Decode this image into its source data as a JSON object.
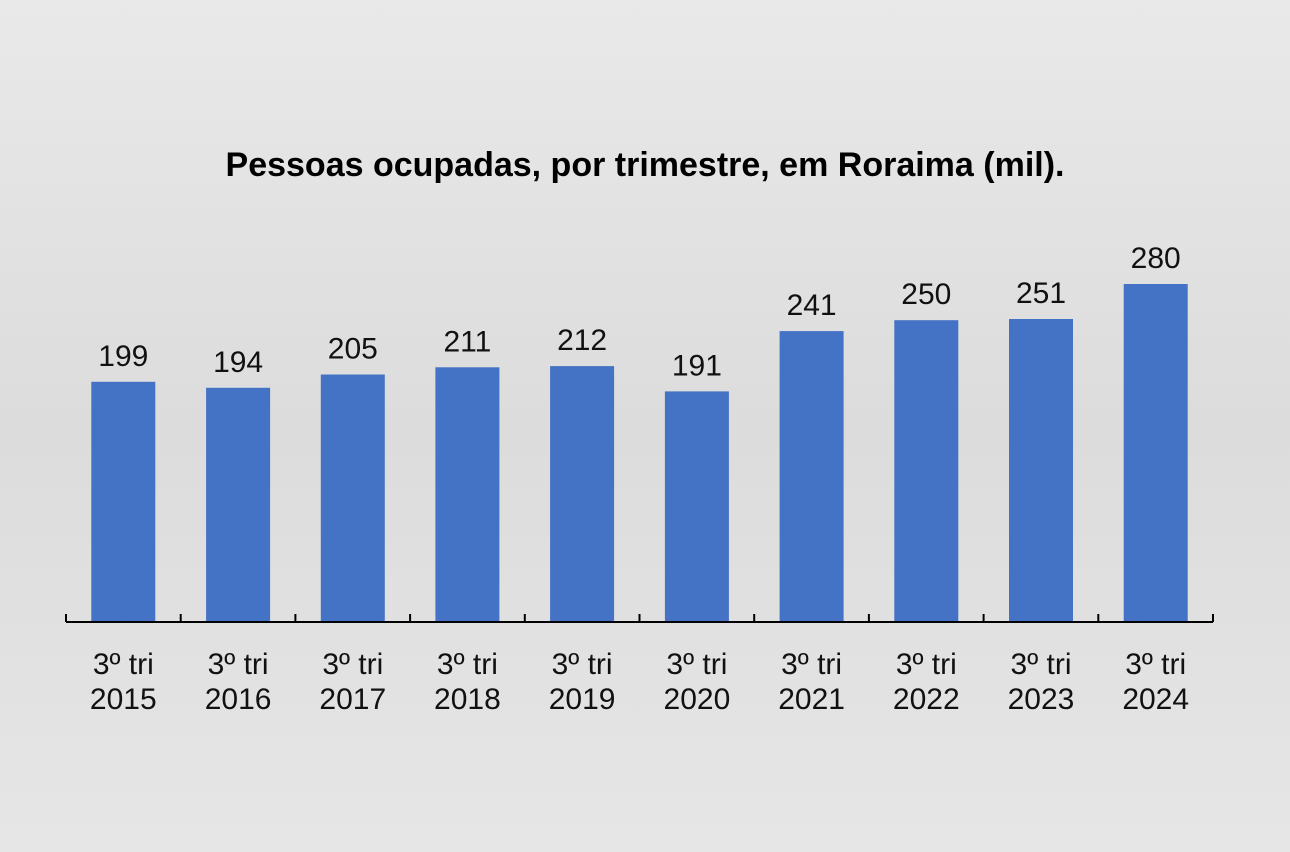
{
  "chart_data": {
    "type": "bar",
    "title": "Pessoas ocupadas, por trimestre, em Roraima (mil).",
    "categories": [
      [
        "3º tri",
        "2015"
      ],
      [
        "3º tri",
        "2016"
      ],
      [
        "3º tri",
        "2017"
      ],
      [
        "3º tri",
        "2018"
      ],
      [
        "3º tri",
        "2019"
      ],
      [
        "3º tri",
        "2020"
      ],
      [
        "3º tri",
        "2021"
      ],
      [
        "3º tri",
        "2022"
      ],
      [
        "3º tri",
        "2023"
      ],
      [
        "3º tri",
        "2024"
      ]
    ],
    "values": [
      199,
      194,
      205,
      211,
      212,
      191,
      241,
      250,
      251,
      280
    ],
    "data_labels": [
      "199",
      "194",
      "205",
      "211",
      "212",
      "191",
      "241",
      "250",
      "251",
      "280"
    ],
    "xlabel": "",
    "ylabel": "",
    "ylim": [
      0,
      280
    ],
    "grid": false,
    "legend": "none",
    "bar_color": "#4472c4",
    "axis_color": "#000000"
  }
}
